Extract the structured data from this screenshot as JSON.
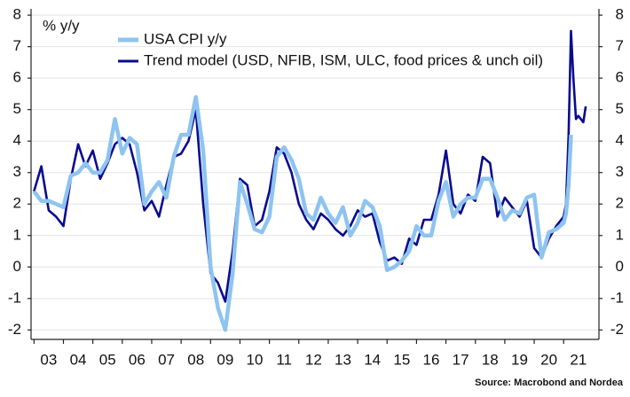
{
  "chart_data": {
    "type": "line",
    "title": "% y/y",
    "source": "Source: Macrobond and Nordea",
    "x": [
      3.0,
      3.25,
      3.5,
      3.75,
      4.0,
      4.25,
      4.5,
      4.75,
      5.0,
      5.25,
      5.5,
      5.75,
      6.0,
      6.25,
      6.5,
      6.75,
      7.0,
      7.25,
      7.5,
      7.75,
      8.0,
      8.25,
      8.5,
      8.75,
      9.0,
      9.25,
      9.5,
      9.75,
      10.0,
      10.25,
      10.5,
      10.75,
      11.0,
      11.25,
      11.5,
      11.75,
      12.0,
      12.25,
      12.5,
      12.75,
      13.0,
      13.25,
      13.5,
      13.75,
      14.0,
      14.25,
      14.5,
      14.75,
      15.0,
      15.25,
      15.5,
      15.75,
      16.0,
      16.25,
      16.5,
      16.75,
      17.0,
      17.25,
      17.5,
      17.75,
      18.0,
      18.25,
      18.5,
      18.75,
      19.0,
      19.25,
      19.5,
      19.75,
      20.0,
      20.25,
      20.5,
      20.75,
      21.0,
      21.08,
      21.17,
      21.25,
      21.33,
      21.42,
      21.5,
      21.67,
      21.75
    ],
    "series": [
      {
        "name": "Trend model (USD, NFIB, ISM, ULC, food prices & unch oil)",
        "color": "#0b0b8f",
        "values": [
          2.4,
          3.2,
          1.8,
          1.6,
          1.3,
          2.8,
          3.9,
          3.2,
          3.7,
          2.8,
          3.3,
          3.9,
          4.1,
          3.9,
          3.0,
          1.8,
          2.1,
          1.6,
          2.6,
          3.5,
          3.6,
          4.0,
          5.0,
          2.0,
          -0.2,
          -0.5,
          -1.1,
          0.5,
          2.8,
          2.6,
          1.3,
          1.5,
          2.4,
          3.8,
          3.6,
          3.0,
          2.0,
          1.5,
          1.2,
          1.7,
          1.5,
          1.2,
          1.0,
          1.3,
          1.8,
          1.6,
          1.7,
          0.8,
          0.2,
          0.3,
          0.1,
          0.9,
          0.7,
          1.5,
          1.5,
          2.3,
          3.7,
          2.0,
          1.7,
          2.3,
          2.1,
          3.5,
          3.3,
          1.6,
          2.2,
          1.9,
          1.6,
          2.1,
          0.6,
          0.3,
          0.9,
          1.3,
          1.6,
          2.0,
          4.2,
          7.5,
          6.0,
          4.7,
          4.8,
          4.6,
          5.1
        ]
      },
      {
        "name": "USA CPI y/y",
        "color": "#8ec4ef",
        "values": [
          2.4,
          2.1,
          2.1,
          2.0,
          1.9,
          2.9,
          3.0,
          3.3,
          3.0,
          3.0,
          3.4,
          4.7,
          3.6,
          4.1,
          3.9,
          2.0,
          2.4,
          2.7,
          2.2,
          3.5,
          4.2,
          4.2,
          5.4,
          3.7,
          0.0,
          -1.3,
          -2.0,
          -0.2,
          2.7,
          2.0,
          1.2,
          1.1,
          1.6,
          3.5,
          3.8,
          3.4,
          2.8,
          1.7,
          1.5,
          2.2,
          1.7,
          1.4,
          1.9,
          1.0,
          1.4,
          2.1,
          1.9,
          1.3,
          -0.1,
          0.0,
          0.2,
          0.5,
          1.3,
          1.0,
          1.0,
          2.1,
          2.7,
          1.6,
          2.0,
          2.2,
          2.2,
          2.8,
          2.8,
          2.2,
          1.5,
          1.8,
          1.7,
          2.2,
          2.3,
          0.3,
          1.1,
          1.2,
          1.4,
          1.7,
          2.6,
          4.2,
          null,
          null,
          null,
          null,
          null
        ]
      }
    ],
    "xlim": [
      2.9,
      22.2
    ],
    "xticks": [
      {
        "value": 3,
        "label": "03"
      },
      {
        "value": 4,
        "label": "04"
      },
      {
        "value": 5,
        "label": "05"
      },
      {
        "value": 6,
        "label": "06"
      },
      {
        "value": 7,
        "label": "07"
      },
      {
        "value": 8,
        "label": "08"
      },
      {
        "value": 9,
        "label": "09"
      },
      {
        "value": 10,
        "label": "10"
      },
      {
        "value": 11,
        "label": "11"
      },
      {
        "value": 12,
        "label": "12"
      },
      {
        "value": 13,
        "label": "13"
      },
      {
        "value": 14,
        "label": "14"
      },
      {
        "value": 15,
        "label": "15"
      },
      {
        "value": 16,
        "label": "16"
      },
      {
        "value": 17,
        "label": "17"
      },
      {
        "value": 18,
        "label": "18"
      },
      {
        "value": 19,
        "label": "19"
      },
      {
        "value": 20,
        "label": "20"
      },
      {
        "value": 21,
        "label": "21"
      }
    ],
    "ylim": [
      -2.3,
      8.2
    ],
    "yticks": [
      -2,
      -1,
      0,
      1,
      2,
      3,
      4,
      5,
      6,
      7,
      8
    ],
    "grid": true
  }
}
